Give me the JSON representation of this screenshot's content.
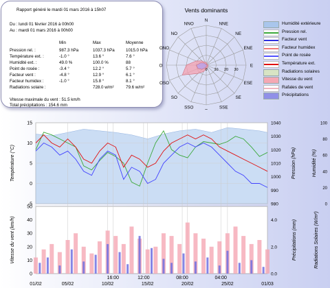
{
  "report": {
    "title": "Rapport généré le mardi 01 mars 2016 à 15h07",
    "period_from": "Du : lundi 01 février 2016 à 00h00",
    "period_to": "Au : mardi 01 mars 2016 à 00h00",
    "col_min": "Min",
    "col_max": "Max",
    "col_avg": "Moyenne",
    "rows": [
      {
        "label": "Pression rel. :",
        "min": "987.3 hPa",
        "max": "1037.3 hPa",
        "avg": "1015.0 hPa"
      },
      {
        "label": "Température ext. :",
        "min": "-1.0 °",
        "max": "13.6 °",
        "avg": "7.6 °"
      },
      {
        "label": "Humidité ext. :",
        "min": "49.0 %",
        "max": "100.0 %",
        "avg": "88"
      },
      {
        "label": "Point de rosée :",
        "min": "-3.4 °",
        "max": "12.2 °",
        "avg": "5.7 °"
      },
      {
        "label": "Facteur vent :",
        "min": "-4.8 °",
        "max": "12.9 °",
        "avg": "6.1 °"
      },
      {
        "label": "Facteur humidex :",
        "min": "-1.0 °",
        "max": "15.8 °",
        "avg": "8.1 °"
      },
      {
        "label": "Radiations solaire :",
        "min": "",
        "max": "728.0 w/m²",
        "avg": "79.6 w/m²"
      }
    ],
    "wind_max": "Vitesse maximale du vent : 51.5 km/h",
    "rain_total": "Total précipitations : 154.6 mm"
  },
  "rose": {
    "title": "Vents dominants",
    "labels": [
      "N",
      "NNE",
      "NE",
      "ENE",
      "E",
      "ESE",
      "SE",
      "SSE",
      "S",
      "SSO",
      "SO",
      "OSO",
      "O",
      "ONO",
      "NO",
      "NNO"
    ],
    "scale": [
      "0",
      "10",
      "20",
      "30"
    ],
    "scale_max": 40,
    "freq": [
      3,
      1.5,
      1,
      1.5,
      2,
      2,
      2,
      3,
      4,
      7,
      12,
      26,
      20,
      11,
      6,
      3
    ],
    "speed": [
      1,
      0.5,
      0.5,
      0.5,
      0.5,
      1,
      1,
      1,
      1.5,
      3,
      6,
      9,
      10,
      6,
      3,
      1
    ]
  },
  "legend": [
    {
      "label": "Humidité extérieure",
      "color": "#a9c6ec",
      "kind": "fill"
    },
    {
      "label": "Pression rel.",
      "color": "#3aa83a",
      "kind": "line"
    },
    {
      "label": "Facteur vent",
      "color": "#2d2de0",
      "kind": "line"
    },
    {
      "label": "Facteur humidex",
      "color": "#f07878",
      "kind": "line"
    },
    {
      "label": "Point de rosée",
      "color": "#5050ff",
      "kind": "line"
    },
    {
      "label": "Température ext.",
      "color": "#e01010",
      "kind": "line"
    },
    {
      "label": "Radiations solaires",
      "color": "#d8e4c4",
      "kind": "fill"
    },
    {
      "label": "Vitesse du vent",
      "color": "#f5a8b4",
      "kind": "fill"
    },
    {
      "label": "Rafales de vent",
      "color": "#f0b4c0",
      "kind": "line"
    },
    {
      "label": "Précipitations",
      "color": "#9090e8",
      "kind": "fill"
    }
  ],
  "chart_data": [
    {
      "type": "line",
      "title": "",
      "xlabel": "",
      "x_ticks": [
        "01/02",
        "05/02",
        "10/02",
        "15/02",
        "20/02",
        "25/02",
        "01/03"
      ],
      "x_tick_days": [
        0,
        4,
        9,
        14,
        19,
        24,
        29
      ],
      "x_hour_ticks": [
        "16:00",
        "12:00",
        "08:00",
        "04:00"
      ],
      "x_hour_tick_days": [
        9.667,
        13.5,
        18.333,
        23.167
      ],
      "ylabel_left": "Température (°C)",
      "ylim_left": [
        -5,
        15
      ],
      "yticks_left": [
        "15",
        "10",
        "5",
        "0",
        "-5"
      ],
      "ylabel_pressure": "Pression (hPa)",
      "ylim_pressure": [
        980,
        1040
      ],
      "yticks_pressure": [
        "1040",
        "1030",
        "1020",
        "1010",
        "1000",
        "990",
        "980"
      ],
      "ylabel_humidity": "Humidité (%)",
      "ylim_humidity": [
        0,
        100
      ],
      "yticks_humidity": [
        "100",
        "80",
        "60",
        "40",
        "20",
        "0"
      ],
      "series": [
        {
          "name": "Humidité extérieure",
          "axis": "humidity",
          "days": [
            0,
            2,
            4,
            6,
            8,
            10,
            12,
            14,
            16,
            18,
            20,
            22,
            24,
            26,
            28,
            29
          ],
          "values": [
            86,
            84,
            88,
            92,
            90,
            88,
            85,
            80,
            86,
            90,
            92,
            88,
            94,
            92,
            90,
            88
          ]
        },
        {
          "name": "Pression rel.",
          "axis": "pressure",
          "days": [
            0,
            1,
            2,
            3,
            4,
            5,
            6,
            7,
            8,
            9,
            10,
            11,
            12,
            13,
            14,
            15,
            16,
            17,
            18,
            19,
            20,
            21,
            22,
            23,
            24,
            25,
            26,
            27,
            28,
            29
          ],
          "values": [
            1020,
            1033,
            1031,
            1028,
            1025,
            1022,
            1008,
            1005,
            1012,
            1018,
            1015,
            1010,
            996,
            993,
            1010,
            1025,
            1034,
            1020,
            1016,
            1014,
            1022,
            1026,
            1025,
            1024,
            1026,
            1030,
            1028,
            1022,
            1015,
            1018
          ]
        },
        {
          "name": "Température ext.",
          "axis": "temperature",
          "days": [
            0,
            1,
            2,
            3,
            4,
            5,
            6,
            7,
            8,
            9,
            10,
            11,
            12,
            13,
            14,
            15,
            16,
            17,
            18,
            19,
            20,
            21,
            22,
            23,
            24,
            25,
            26,
            27,
            28,
            29
          ],
          "values": [
            10,
            12,
            10,
            9,
            11,
            9,
            6,
            5,
            8,
            10,
            9,
            4,
            7,
            6,
            4,
            5,
            8,
            10,
            11,
            12,
            11,
            12,
            11,
            9,
            8,
            7,
            6,
            5,
            4,
            3
          ]
        },
        {
          "name": "Point de rosée",
          "axis": "temperature",
          "days": [
            0,
            1,
            2,
            3,
            4,
            5,
            6,
            7,
            8,
            9,
            10,
            11,
            12,
            13,
            14,
            15,
            16,
            17,
            18,
            19,
            20,
            21,
            22,
            23,
            24,
            25,
            26,
            27,
            28,
            29
          ],
          "values": [
            8,
            10,
            9,
            7,
            8,
            6,
            3,
            2,
            6,
            8,
            7,
            1,
            4,
            3,
            0,
            1,
            5,
            7,
            9,
            10,
            9,
            10,
            9,
            7,
            5,
            3,
            2,
            0,
            0,
            -1
          ]
        }
      ]
    },
    {
      "type": "bar",
      "title": "",
      "ylabel_left": "Vitesse du vent (km/h)",
      "ylim_left": [
        0,
        50
      ],
      "yticks_left": [
        "50",
        "40",
        "30",
        "20",
        "10",
        "0"
      ],
      "ylabel_rain": "Précipitations (mm)",
      "ylim_rain": [
        0,
        5
      ],
      "yticks_rain": [
        "4.0",
        "2.0",
        "0.0"
      ],
      "ylabel_solar": "Radiations Solaires (W/m²)",
      "series": [
        {
          "name": "Vitesse du vent",
          "axis": "wind",
          "days": [
            0,
            1,
            2,
            3,
            4,
            5,
            6,
            7,
            8,
            9,
            10,
            11,
            12,
            13,
            14,
            15,
            16,
            17,
            18,
            19,
            20,
            21,
            22,
            23,
            24,
            25,
            26,
            27,
            28,
            29
          ],
          "values": [
            12,
            18,
            22,
            16,
            25,
            30,
            20,
            15,
            24,
            32,
            28,
            22,
            35,
            26,
            18,
            20,
            30,
            28,
            22,
            38,
            30,
            26,
            20,
            24,
            30,
            35,
            28,
            22,
            25,
            18
          ]
        },
        {
          "name": "Précipitations",
          "axis": "rain",
          "days": [
            0.5,
            1.5,
            3,
            4.5,
            6,
            7.5,
            9,
            10.5,
            11.5,
            13,
            14.5,
            16,
            17,
            18.5,
            20,
            21.5,
            23,
            24,
            25.5,
            27,
            28.5
          ],
          "values": [
            0.8,
            1.2,
            0.6,
            1.8,
            0.9,
            1.4,
            2.2,
            1.6,
            0.7,
            2.8,
            1.9,
            1.1,
            0.8,
            1.5,
            0.9,
            1.2,
            0.6,
            1.7,
            0.8,
            1.0,
            0.5
          ]
        }
      ]
    }
  ]
}
